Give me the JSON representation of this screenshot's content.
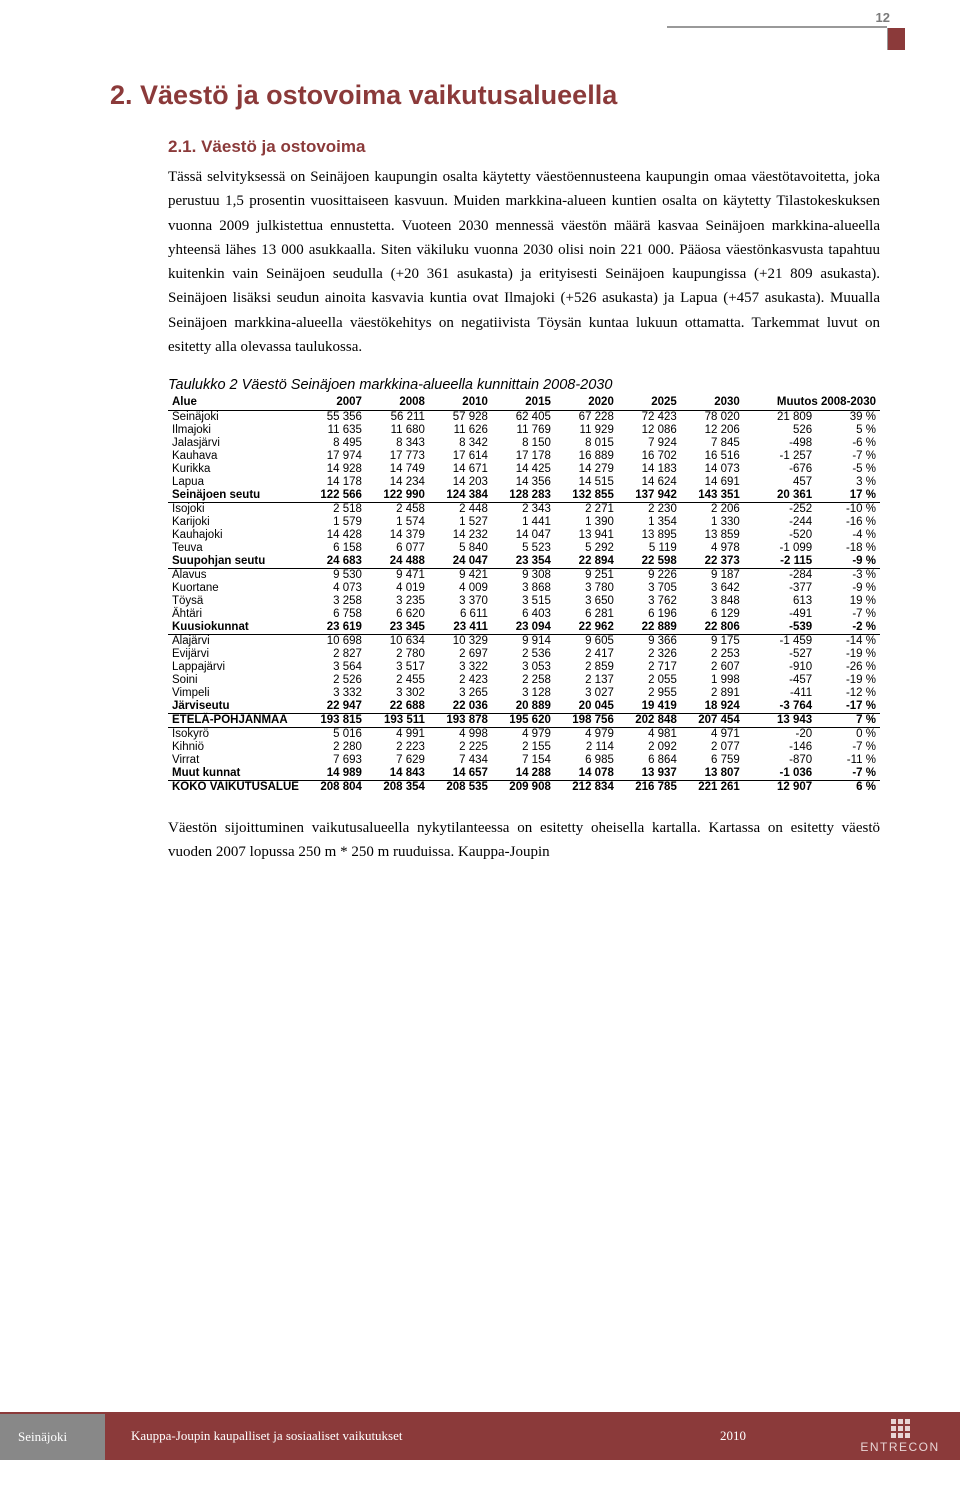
{
  "page_number_top": "12",
  "section_title": "2. Väestö ja ostovoima vaikutusalueella",
  "subsection_title": "2.1. Väestö ja ostovoima",
  "paragraphs": [
    "Tässä selvityksessä on Seinäjoen kaupungin osalta käytetty väestöennusteena kaupungin omaa väestötavoitetta, joka perustuu 1,5 prosentin vuosittaiseen kasvuun. Muiden markkina-alueen kuntien osalta on käytetty Tilastokeskuksen vuonna 2009 julkistettua ennustetta. Vuoteen 2030 mennessä väestön määrä kasvaa Seinäjoen markkina-alueella yhteensä lähes 13 000 asukkaalla. Siten väkiluku vuonna 2030 olisi noin 221 000. Pääosa väestönkasvusta tapahtuu kuitenkin vain Seinäjoen seudulla (+20 361 asukasta) ja erityisesti Seinäjoen kaupungissa (+21 809 asukasta). Seinäjoen lisäksi seudun ainoita kasvavia kuntia ovat Ilmajoki (+526 asukasta) ja Lapua (+457 asukasta). Muualla Seinäjoen markkina-alueella väestökehitys on negatiivista Töysän kuntaa lukuun ottamatta. Tarkemmat luvut on esitetty alla olevassa taulukossa."
  ],
  "table_caption": "Taulukko 2 Väestö Seinäjoen markkina-alueella kunnittain 2008-2030",
  "table": {
    "columns": [
      "Alue",
      "2007",
      "2008",
      "2010",
      "2015",
      "2020",
      "2025",
      "2030",
      "Muutos 2008-2030"
    ],
    "rows": [
      {
        "cells": [
          "Seinäjoki",
          "55 356",
          "56 211",
          "57 928",
          "62 405",
          "67 228",
          "72 423",
          "78 020",
          "21 809",
          "39 %"
        ],
        "bold": false
      },
      {
        "cells": [
          "Ilmajoki",
          "11 635",
          "11 680",
          "11 626",
          "11 769",
          "11 929",
          "12 086",
          "12 206",
          "526",
          "5 %"
        ],
        "bold": false
      },
      {
        "cells": [
          "Jalasjärvi",
          "8 495",
          "8 343",
          "8 342",
          "8 150",
          "8 015",
          "7 924",
          "7 845",
          "-498",
          "-6 %"
        ],
        "bold": false
      },
      {
        "cells": [
          "Kauhava",
          "17 974",
          "17 773",
          "17 614",
          "17 178",
          "16 889",
          "16 702",
          "16 516",
          "-1 257",
          "-7 %"
        ],
        "bold": false
      },
      {
        "cells": [
          "Kurikka",
          "14 928",
          "14 749",
          "14 671",
          "14 425",
          "14 279",
          "14 183",
          "14 073",
          "-676",
          "-5 %"
        ],
        "bold": false
      },
      {
        "cells": [
          "Lapua",
          "14 178",
          "14 234",
          "14 203",
          "14 356",
          "14 515",
          "14 624",
          "14 691",
          "457",
          "3 %"
        ],
        "bold": false
      },
      {
        "cells": [
          "Seinäjoen seutu",
          "122 566",
          "122 990",
          "124 384",
          "128 283",
          "132 855",
          "137 942",
          "143 351",
          "20 361",
          "17 %"
        ],
        "bold": true
      },
      {
        "cells": [
          "Isojoki",
          "2 518",
          "2 458",
          "2 448",
          "2 343",
          "2 271",
          "2 230",
          "2 206",
          "-252",
          "-10 %"
        ],
        "bold": false,
        "top": true
      },
      {
        "cells": [
          "Karijoki",
          "1 579",
          "1 574",
          "1 527",
          "1 441",
          "1 390",
          "1 354",
          "1 330",
          "-244",
          "-16 %"
        ],
        "bold": false
      },
      {
        "cells": [
          "Kauhajoki",
          "14 428",
          "14 379",
          "14 232",
          "14 047",
          "13 941",
          "13 895",
          "13 859",
          "-520",
          "-4 %"
        ],
        "bold": false
      },
      {
        "cells": [
          "Teuva",
          "6 158",
          "6 077",
          "5 840",
          "5 523",
          "5 292",
          "5 119",
          "4 978",
          "-1 099",
          "-18 %"
        ],
        "bold": false
      },
      {
        "cells": [
          "Suupohjan seutu",
          "24 683",
          "24 488",
          "24 047",
          "23 354",
          "22 894",
          "22 598",
          "22 373",
          "-2 115",
          "-9 %"
        ],
        "bold": true
      },
      {
        "cells": [
          "Alavus",
          "9 530",
          "9 471",
          "9 421",
          "9 308",
          "9 251",
          "9 226",
          "9 187",
          "-284",
          "-3 %"
        ],
        "bold": false,
        "top": true
      },
      {
        "cells": [
          "Kuortane",
          "4 073",
          "4 019",
          "4 009",
          "3 868",
          "3 780",
          "3 705",
          "3 642",
          "-377",
          "-9 %"
        ],
        "bold": false
      },
      {
        "cells": [
          "Töysä",
          "3 258",
          "3 235",
          "3 370",
          "3 515",
          "3 650",
          "3 762",
          "3 848",
          "613",
          "19 %"
        ],
        "bold": false
      },
      {
        "cells": [
          "Ähtäri",
          "6 758",
          "6 620",
          "6 611",
          "6 403",
          "6 281",
          "6 196",
          "6 129",
          "-491",
          "-7 %"
        ],
        "bold": false
      },
      {
        "cells": [
          "Kuusiokunnat",
          "23 619",
          "23 345",
          "23 411",
          "23 094",
          "22 962",
          "22 889",
          "22 806",
          "-539",
          "-2 %"
        ],
        "bold": true
      },
      {
        "cells": [
          "Alajärvi",
          "10 698",
          "10 634",
          "10 329",
          "9 914",
          "9 605",
          "9 366",
          "9 175",
          "-1 459",
          "-14 %"
        ],
        "bold": false,
        "top": true
      },
      {
        "cells": [
          "Evijärvi",
          "2 827",
          "2 780",
          "2 697",
          "2 536",
          "2 417",
          "2 326",
          "2 253",
          "-527",
          "-19 %"
        ],
        "bold": false
      },
      {
        "cells": [
          "Lappajärvi",
          "3 564",
          "3 517",
          "3 322",
          "3 053",
          "2 859",
          "2 717",
          "2 607",
          "-910",
          "-26 %"
        ],
        "bold": false
      },
      {
        "cells": [
          "Soini",
          "2 526",
          "2 455",
          "2 423",
          "2 258",
          "2 137",
          "2 055",
          "1 998",
          "-457",
          "-19 %"
        ],
        "bold": false
      },
      {
        "cells": [
          "Vimpeli",
          "3 332",
          "3 302",
          "3 265",
          "3 128",
          "3 027",
          "2 955",
          "2 891",
          "-411",
          "-12 %"
        ],
        "bold": false
      },
      {
        "cells": [
          "Järviseutu",
          "22 947",
          "22 688",
          "22 036",
          "20 889",
          "20 045",
          "19 419",
          "18 924",
          "-3 764",
          "-17 %"
        ],
        "bold": true
      },
      {
        "cells": [
          "ETELÄ-POHJANMAA",
          "193 815",
          "193 511",
          "193 878",
          "195 620",
          "198 756",
          "202 848",
          "207 454",
          "13 943",
          "7 %"
        ],
        "bold": true,
        "top": true
      },
      {
        "cells": [
          "Isokyrö",
          "5 016",
          "4 991",
          "4 998",
          "4 979",
          "4 979",
          "4 981",
          "4 971",
          "-20",
          "0 %"
        ],
        "bold": false,
        "top": true
      },
      {
        "cells": [
          "Kihniö",
          "2 280",
          "2 223",
          "2 225",
          "2 155",
          "2 114",
          "2 092",
          "2 077",
          "-146",
          "-7 %"
        ],
        "bold": false
      },
      {
        "cells": [
          "Virrat",
          "7 693",
          "7 629",
          "7 434",
          "7 154",
          "6 985",
          "6 864",
          "6 759",
          "-870",
          "-11 %"
        ],
        "bold": false
      },
      {
        "cells": [
          "Muut kunnat",
          "14 989",
          "14 843",
          "14 657",
          "14 288",
          "14 078",
          "13 937",
          "13 807",
          "-1 036",
          "-7 %"
        ],
        "bold": true
      },
      {
        "cells": [
          "KOKO VAIKUTUSALUE",
          "208 804",
          "208 354",
          "208 535",
          "209 908",
          "212 834",
          "216 785",
          "221 261",
          "12 907",
          "6 %"
        ],
        "bold": true,
        "top": true
      }
    ]
  },
  "closing_paragraph": "Väestön sijoittuminen vaikutusalueella nykytilanteessa on esitetty oheisella kartalla. Kartassa on esitetty väestö vuoden 2007 lopussa  250 m * 250 m ruuduissa. Kauppa-Joupin",
  "footer": {
    "left": "Seinäjoki",
    "mid": "Kauppa-Joupin kaupalliset ja sosiaaliset vaikutukset",
    "year": "2010",
    "logo": "ENTRECON"
  },
  "colors": {
    "accent": "#8b3a3a",
    "grey": "#888888",
    "text": "#000000",
    "bg": "#ffffff"
  }
}
